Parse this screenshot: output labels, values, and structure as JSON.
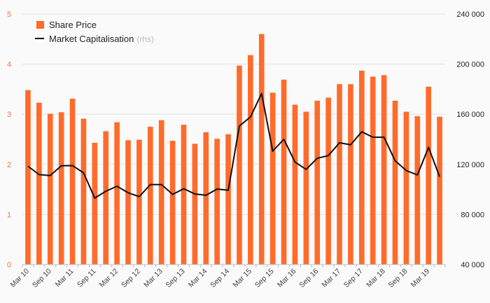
{
  "chart_data": {
    "type": "bar",
    "categories": [
      "Mar 10",
      "Jun 10",
      "Sep 10",
      "Dec 10",
      "Mar 11",
      "Jun 11",
      "Sep 11",
      "Dec 11",
      "Mar 12",
      "Jun 12",
      "Sep 12",
      "Dec 12",
      "Mar 13",
      "Jun 13",
      "Sep 13",
      "Dec 13",
      "Mar 14",
      "Jun 14",
      "Sep 14",
      "Dec 14",
      "Mar 15",
      "Jun 15",
      "Sep 15",
      "Dec 15",
      "Mar 16",
      "Jun 16",
      "Sep 16",
      "Dec 16",
      "Mar 17",
      "Jun 17",
      "Sep 17",
      "Dec 17",
      "Mar 18",
      "Jun 18",
      "Sep 18",
      "Dec 18",
      "Mar 19",
      "Jun 19"
    ],
    "x_tick_labels": [
      "Mar 10",
      "Sep 10",
      "Mar 11",
      "Sep 11",
      "Mar 12",
      "Sep 12",
      "Mar 13",
      "Sep 13",
      "Mar 14",
      "Sep 14",
      "Mar 15",
      "Sep 15",
      "Mar 16",
      "Sep 16",
      "Mar 17",
      "Sep 17",
      "Mar 18",
      "Sep 18",
      "Mar 19"
    ],
    "series": [
      {
        "name": "Share Price",
        "axis": "left",
        "type": "bar",
        "color": "#ff6b2b",
        "values": [
          3.48,
          3.23,
          3.01,
          3.04,
          3.31,
          2.91,
          2.43,
          2.66,
          2.84,
          2.48,
          2.49,
          2.75,
          2.88,
          2.47,
          2.79,
          2.41,
          2.64,
          2.51,
          2.6,
          3.97,
          4.18,
          4.6,
          3.43,
          3.69,
          3.19,
          3.05,
          3.27,
          3.33,
          3.6,
          3.6,
          3.87,
          3.75,
          3.78,
          3.27,
          3.05,
          2.96,
          3.55,
          2.95
        ]
      },
      {
        "name": "Market Capitalisation",
        "name_suffix": "(rhs)",
        "axis": "right",
        "type": "line",
        "color": "#111111",
        "values": [
          118500,
          111800,
          111000,
          118800,
          119000,
          113200,
          93000,
          98500,
          102500,
          97300,
          94200,
          103800,
          103800,
          96000,
          100500,
          96300,
          95300,
          100300,
          99300,
          150500,
          157800,
          176500,
          130500,
          140000,
          121800,
          115900,
          124800,
          127000,
          137200,
          135600,
          146000,
          141600,
          141600,
          122800,
          115000,
          111500,
          133500,
          110000
        ]
      }
    ],
    "y_left": {
      "min": 0,
      "max": 5,
      "ticks": [
        "0",
        "1",
        "2",
        "3",
        "4",
        "5"
      ]
    },
    "y_right": {
      "min": 40000,
      "max": 240000,
      "ticks": [
        "40 000",
        "80 000",
        "120 000",
        "160 000",
        "200 000",
        "240 000"
      ]
    },
    "grid": true,
    "legend": "top-left"
  }
}
